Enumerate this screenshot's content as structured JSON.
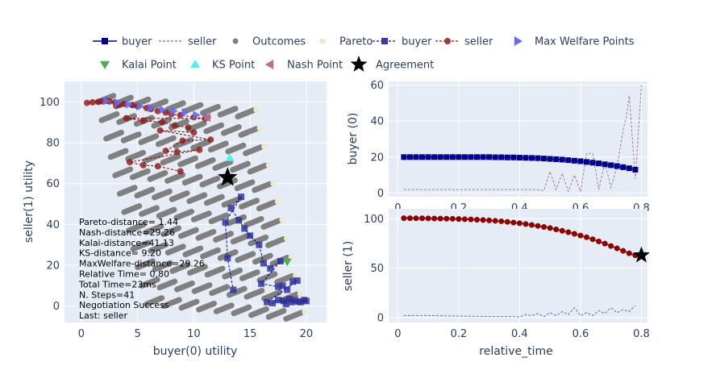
{
  "legend": [
    {
      "label": "buyer",
      "symbol": "line-square",
      "color": "#00008b",
      "dash": false
    },
    {
      "label": "seller",
      "symbol": "line",
      "color": "#a0808b",
      "dash": true
    },
    {
      "label": "Outcomes",
      "symbol": "circle",
      "color": "#808080"
    },
    {
      "label": "Pareto",
      "symbol": "circle",
      "color": "#eee8cd"
    },
    {
      "label": "buyer",
      "symbol": "line-square",
      "color": "#3c3ca0",
      "dash": true
    },
    {
      "label": "seller",
      "symbol": "line-circle",
      "color": "#a03c3c",
      "dash": true
    },
    {
      "label": "Max Welfare Points",
      "symbol": "triangle-right",
      "color": "#6a6af0"
    },
    {
      "label": "Kalai Point",
      "symbol": "triangle-down",
      "color": "#4caf50"
    },
    {
      "label": "KS Point",
      "symbol": "triangle-up",
      "color": "#4ef0f0"
    },
    {
      "label": "Nash Point",
      "symbol": "triangle-left",
      "color": "#c07070"
    },
    {
      "label": "Agreement",
      "symbol": "star",
      "color": "#000000"
    }
  ],
  "annotation_lines": [
    "Pareto-distance= 1.44",
    "Nash-distance=29.26",
    "Kalai-distance=41.13",
    "KS-distance= 9.20",
    "MaxWelfare-distance=29.26",
    "Relative Time= 0.80",
    "Total Time=23ms",
    "N. Steps=41",
    "Negotiation Success",
    "Last: seller"
  ],
  "colors": {
    "plot_bg": "#e5ecf6",
    "grid": "#ffffff",
    "buyer": "#00008b",
    "seller": "#8b0000",
    "outcomes": "#808080",
    "pareto": "#eee8cd"
  },
  "chart_data": [
    {
      "type": "scatter",
      "xlabel": "buyer(0) utility",
      "ylabel": "seller(1) utility",
      "xlim": [
        -1.5,
        21.8
      ],
      "ylim": [
        -8,
        110
      ],
      "xticks": [
        0,
        5,
        10,
        15,
        20
      ],
      "yticks": [
        0,
        20,
        40,
        60,
        80,
        100
      ],
      "outcome_bands": [
        {
          "x_start": 1.5,
          "y_start": 100,
          "count": 9
        },
        {
          "x_start": 1.8,
          "y_start": 91,
          "count": 9
        },
        {
          "x_start": 2.2,
          "y_start": 82,
          "count": 9
        },
        {
          "x_start": 2.6,
          "y_start": 73,
          "count": 9
        },
        {
          "x_start": 3.0,
          "y_start": 64,
          "count": 9
        },
        {
          "x_start": 3.4,
          "y_start": 55,
          "count": 9
        },
        {
          "x_start": 3.8,
          "y_start": 46,
          "count": 9
        },
        {
          "x_start": 4.2,
          "y_start": 37,
          "count": 9
        },
        {
          "x_start": 4.6,
          "y_start": 28,
          "count": 9
        },
        {
          "x_start": 5.0,
          "y_start": 19,
          "count": 9
        },
        {
          "x_start": 5.4,
          "y_start": 10,
          "count": 9
        },
        {
          "x_start": 5.8,
          "y_start": 1,
          "count": 9
        }
      ],
      "buyer_offers": [
        [
          20.0,
          2.5
        ],
        [
          19.8,
          3.0
        ],
        [
          19.5,
          2.0
        ],
        [
          19.3,
          2.2
        ],
        [
          19.0,
          2.8
        ],
        [
          18.7,
          2.0
        ],
        [
          18.5,
          3.5
        ],
        [
          18.2,
          1.0
        ],
        [
          18.0,
          2.5
        ],
        [
          17.5,
          3.0
        ],
        [
          17.0,
          1.5
        ],
        [
          16.5,
          2.0
        ],
        [
          19.2,
          12.5
        ],
        [
          18.8,
          12.0
        ],
        [
          18.3,
          8.0
        ],
        [
          17.9,
          10.0
        ],
        [
          17.5,
          9.5
        ],
        [
          16.0,
          11.0
        ],
        [
          17.7,
          22.0
        ],
        [
          16.8,
          18.5
        ],
        [
          16.2,
          21.0
        ],
        [
          15.8,
          30.0
        ],
        [
          15.0,
          34.5
        ],
        [
          14.5,
          38.0
        ],
        [
          14.0,
          42.0
        ],
        [
          13.3,
          48.0
        ],
        [
          14.2,
          53.5
        ],
        [
          12.8,
          41.0
        ],
        [
          13.0,
          23.5
        ],
        [
          13.5,
          8.0
        ]
      ],
      "seller_offers": [
        [
          0.5,
          99.5
        ],
        [
          1.0,
          99.8
        ],
        [
          1.5,
          100.0
        ],
        [
          1.8,
          100.3
        ],
        [
          2.2,
          100.5
        ],
        [
          2.5,
          100.2
        ],
        [
          3.0,
          99.8
        ],
        [
          3.8,
          99.0
        ],
        [
          3.4,
          98.5
        ],
        [
          3.1,
          98.0
        ],
        [
          4.5,
          98.5
        ],
        [
          5.0,
          97.8
        ],
        [
          5.8,
          97.0
        ],
        [
          6.2,
          96.5
        ],
        [
          6.8,
          95.5
        ],
        [
          7.5,
          94.8
        ],
        [
          8.0,
          94.0
        ],
        [
          8.8,
          93.5
        ],
        [
          10.0,
          92.5
        ],
        [
          11.0,
          91.8
        ],
        [
          4.0,
          92.0
        ],
        [
          5.5,
          90.8
        ],
        [
          7.2,
          90.0
        ],
        [
          8.3,
          88.5
        ],
        [
          9.5,
          87.5
        ],
        [
          10.0,
          85.0
        ],
        [
          7.0,
          86.0
        ],
        [
          11.5,
          81.5
        ],
        [
          9.0,
          81.0
        ],
        [
          7.5,
          76.0
        ],
        [
          8.5,
          75.5
        ],
        [
          10.5,
          76.5
        ],
        [
          4.3,
          70.5
        ],
        [
          5.5,
          69.0
        ],
        [
          6.8,
          68.5
        ],
        [
          8.8,
          66.0
        ]
      ],
      "max_welfare_points": [
        [
          2.2,
          100.5
        ],
        [
          3.2,
          99.5
        ],
        [
          4.2,
          98.8
        ],
        [
          5.2,
          97.8
        ],
        [
          6.2,
          97.0
        ],
        [
          7.2,
          96.2
        ],
        [
          8.2,
          95.5
        ],
        [
          9.2,
          94.8
        ],
        [
          10.2,
          93.5
        ],
        [
          11.2,
          92.5
        ]
      ],
      "kalai_point": [
        18.3,
        21.7
      ],
      "ks_point": [
        13.2,
        72.5
      ],
      "nash_point": [
        11.2,
        92.3
      ],
      "agreement": [
        13.0,
        63.0
      ]
    },
    {
      "type": "line",
      "xlabel": "",
      "ylabel": "buyer (0)",
      "xlim": [
        -0.03,
        0.82
      ],
      "ylim": [
        -2,
        62
      ],
      "xticks": [
        0,
        0.2,
        0.4,
        0.6,
        0.8
      ],
      "yticks": [
        0,
        20,
        40,
        60
      ],
      "series": [
        {
          "name": "buyer",
          "x": [
            0.02,
            0.04,
            0.06,
            0.08,
            0.1,
            0.12,
            0.14,
            0.16,
            0.18,
            0.2,
            0.22,
            0.24,
            0.26,
            0.28,
            0.3,
            0.32,
            0.34,
            0.36,
            0.38,
            0.4,
            0.42,
            0.44,
            0.46,
            0.48,
            0.5,
            0.52,
            0.54,
            0.56,
            0.58,
            0.6,
            0.62,
            0.64,
            0.66,
            0.68,
            0.7,
            0.72,
            0.74,
            0.76,
            0.78
          ],
          "y": [
            20.0,
            20.0,
            20.0,
            20.0,
            20.0,
            20.0,
            20.0,
            20.0,
            20.0,
            20.0,
            20.0,
            20.0,
            20.0,
            20.0,
            20.0,
            19.9,
            19.9,
            19.8,
            19.8,
            19.7,
            19.6,
            19.5,
            19.4,
            19.2,
            19.0,
            18.8,
            18.6,
            18.3,
            18.0,
            17.7,
            17.3,
            16.9,
            16.5,
            16.0,
            15.5,
            15.0,
            14.4,
            13.8,
            13.0
          ]
        },
        {
          "name": "seller",
          "x": [
            0.02,
            0.4,
            0.45,
            0.48,
            0.5,
            0.52,
            0.54,
            0.56,
            0.58,
            0.6,
            0.62,
            0.64,
            0.66,
            0.68,
            0.7,
            0.72,
            0.74,
            0.75,
            0.76,
            0.78,
            0.8
          ],
          "y": [
            2.0,
            2.0,
            2.0,
            1.5,
            12.0,
            2.0,
            11.0,
            1.0,
            10.0,
            1.0,
            22.0,
            22.0,
            2.0,
            17.0,
            3.0,
            15.0,
            35.0,
            42.0,
            54.0,
            8.0,
            60.0
          ]
        }
      ]
    },
    {
      "type": "line",
      "xlabel": "relative_time",
      "ylabel": "seller (1)",
      "xlim": [
        -0.03,
        0.82
      ],
      "ylim": [
        -5,
        110
      ],
      "xticks": [
        0,
        0.2,
        0.4,
        0.6,
        0.8
      ],
      "yticks": [
        0,
        50,
        100
      ],
      "series": [
        {
          "name": "seller",
          "x": [
            0.02,
            0.04,
            0.06,
            0.08,
            0.1,
            0.12,
            0.14,
            0.16,
            0.18,
            0.2,
            0.22,
            0.24,
            0.26,
            0.28,
            0.3,
            0.32,
            0.34,
            0.36,
            0.38,
            0.4,
            0.42,
            0.44,
            0.46,
            0.48,
            0.5,
            0.52,
            0.54,
            0.56,
            0.58,
            0.6,
            0.62,
            0.64,
            0.66,
            0.68,
            0.7,
            0.72,
            0.74,
            0.76,
            0.78
          ],
          "y": [
            100.5,
            100.5,
            100.4,
            100.4,
            100.3,
            100.2,
            100.1,
            100.0,
            99.9,
            99.7,
            99.5,
            99.3,
            99.0,
            98.7,
            98.3,
            97.9,
            97.4,
            96.8,
            96.1,
            95.4,
            94.6,
            93.7,
            92.7,
            91.6,
            90.5,
            89.2,
            87.8,
            86.3,
            84.7,
            83.0,
            81.2,
            79.2,
            77.0,
            74.8,
            72.4,
            70.0,
            67.5,
            65.0,
            63.0
          ]
        },
        {
          "name": "buyer",
          "x": [
            0.02,
            0.1,
            0.2,
            0.3,
            0.38,
            0.4,
            0.42,
            0.44,
            0.46,
            0.48,
            0.5,
            0.52,
            0.54,
            0.56,
            0.58,
            0.6,
            0.62,
            0.64,
            0.66,
            0.68,
            0.7,
            0.72,
            0.74,
            0.76,
            0.78
          ],
          "y": [
            2.0,
            2.0,
            1.5,
            1.0,
            1.0,
            0.5,
            3.0,
            2.0,
            4.0,
            1.0,
            5.0,
            2.0,
            6.0,
            3.0,
            10.0,
            2.0,
            5.0,
            2.0,
            7.0,
            4.0,
            10.0,
            5.0,
            8.0,
            6.0,
            12.0
          ]
        }
      ],
      "agreement": [
        0.8,
        63.0
      ]
    }
  ]
}
